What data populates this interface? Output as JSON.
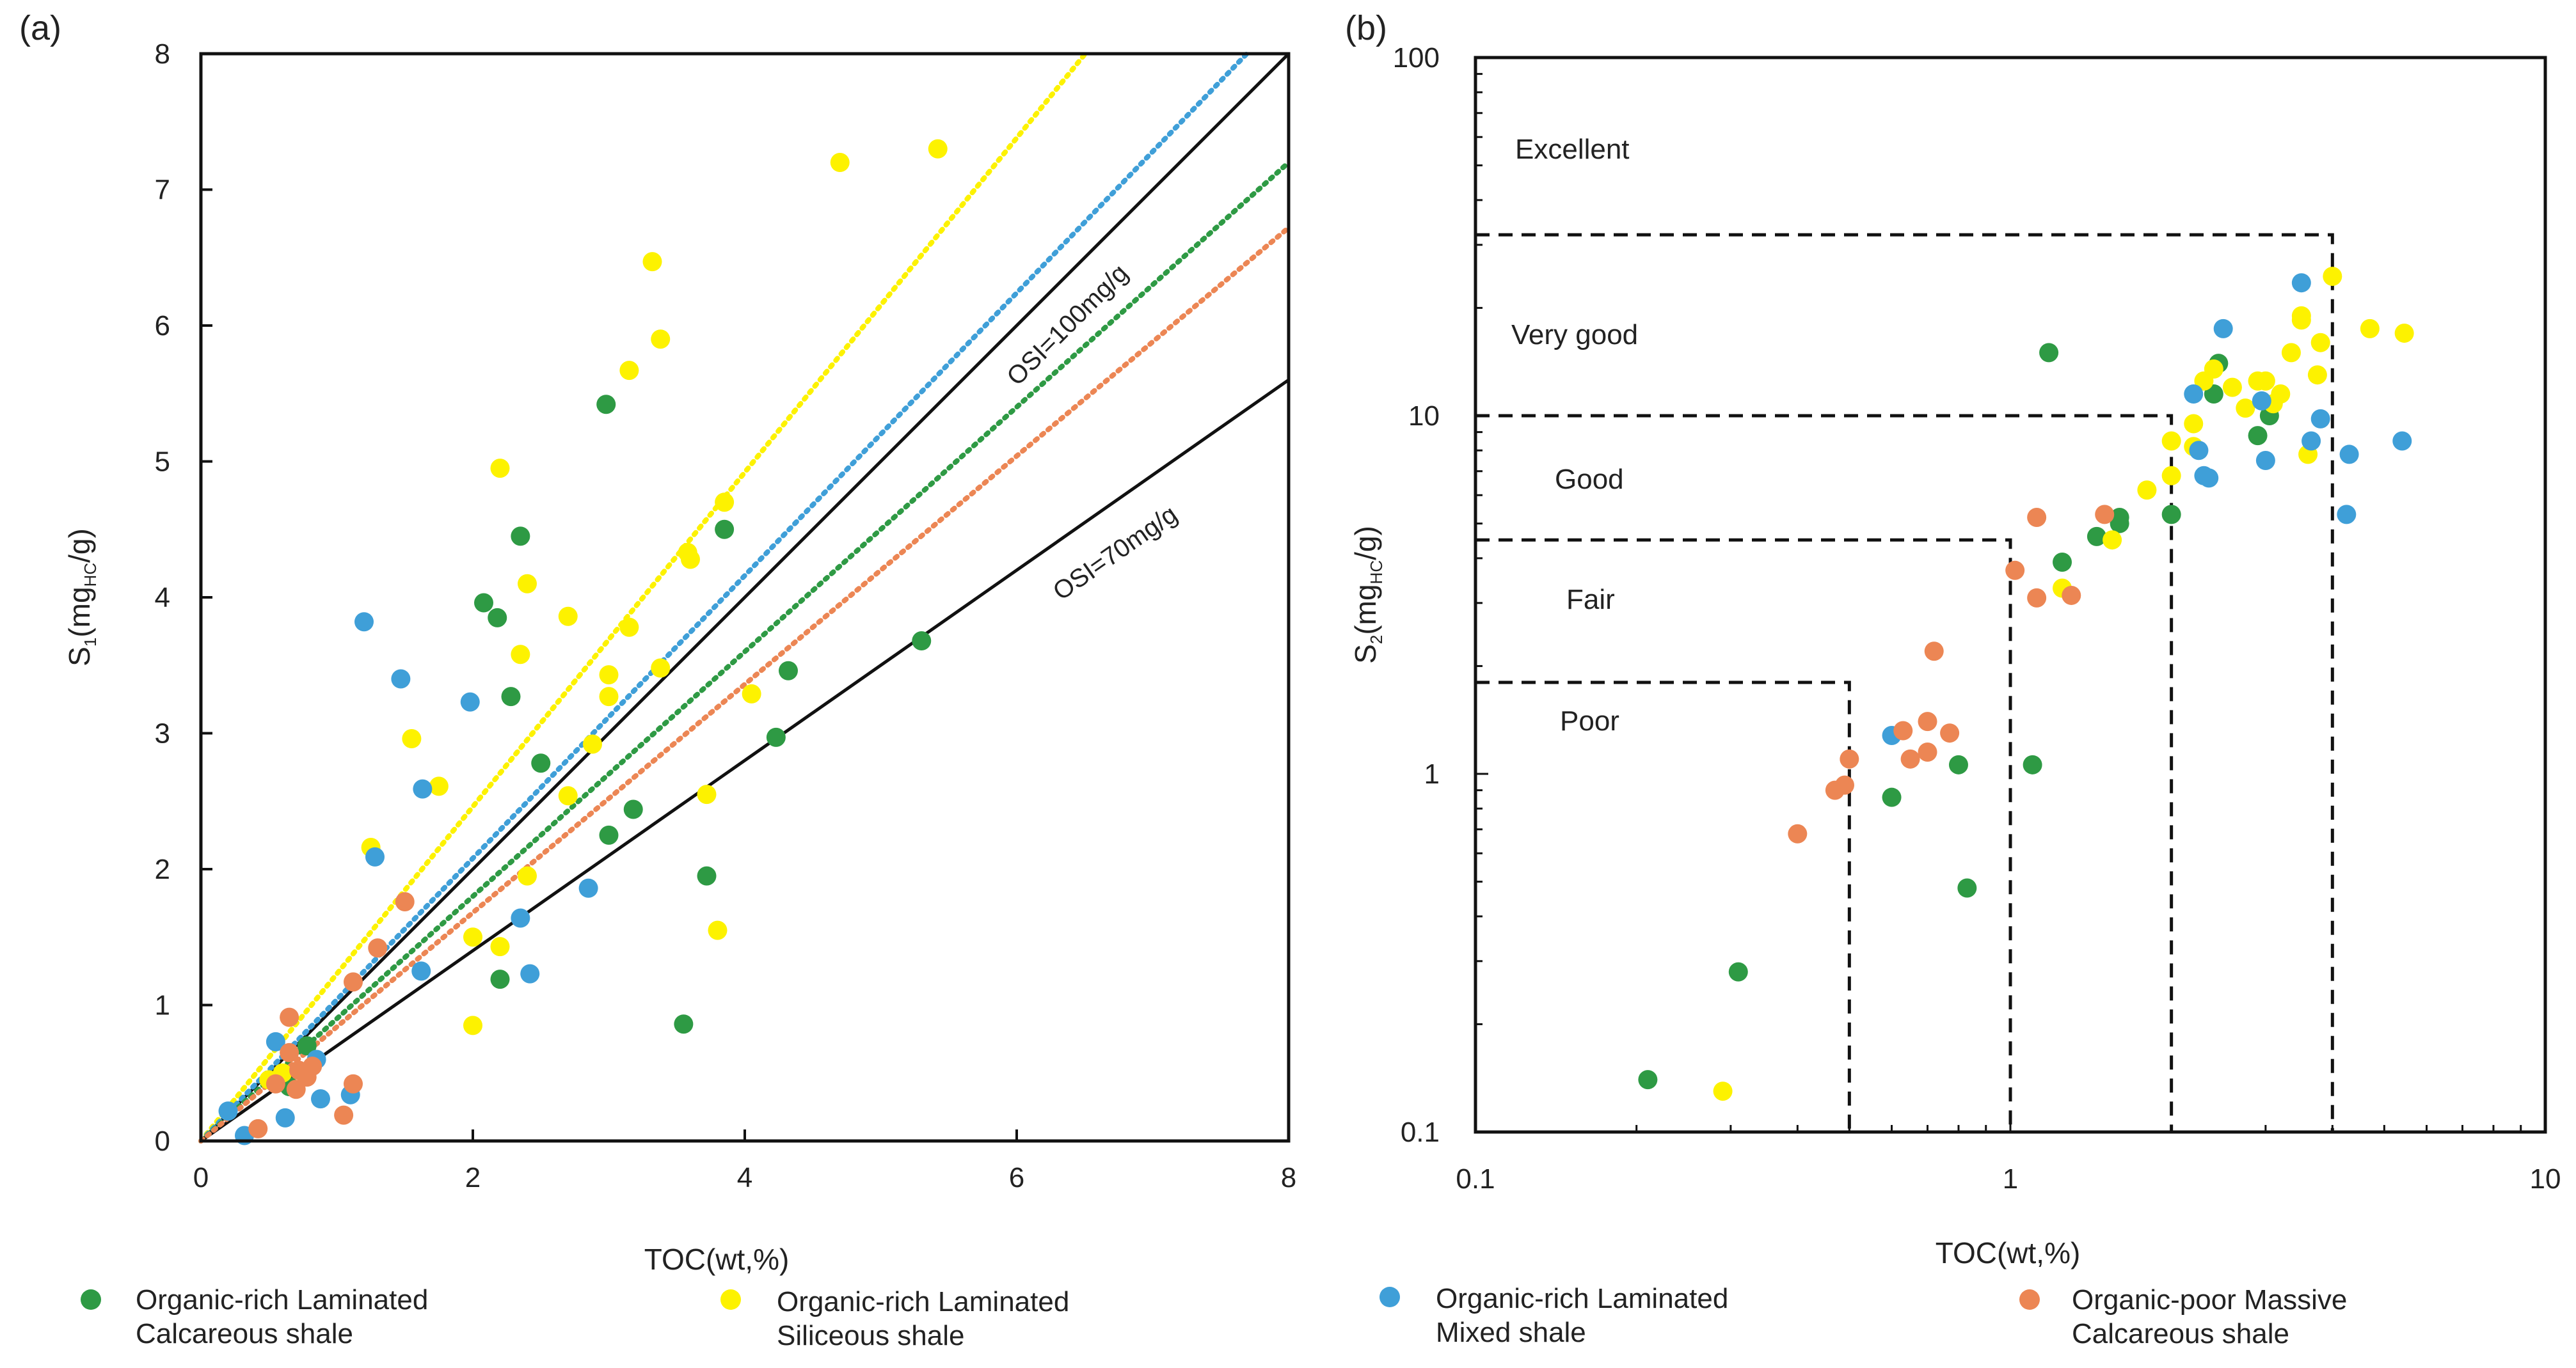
{
  "colors": {
    "calcareous": "#2e9a44",
    "siliceous": "#fdf200",
    "mixed": "#3f9fd8",
    "massive": "#ec8654",
    "frame": "#111111"
  },
  "legend": [
    {
      "key": "calcareous",
      "line1": "Organic-rich Laminated",
      "line2": "Calcareous shale"
    },
    {
      "key": "siliceous",
      "line1": "Organic-rich Laminated",
      "line2": "Siliceous shale"
    },
    {
      "key": "mixed",
      "line1": "Organic-rich Laminated",
      "line2": "Mixed shale"
    },
    {
      "key": "massive",
      "line1": "Organic-poor Massive",
      "line2": "Calcareous shale"
    }
  ],
  "chart_data": [
    {
      "id": "a",
      "type": "scatter",
      "panel_label": "(a)",
      "xlabel": "TOC(wt,%)",
      "ylabel": {
        "main": "S",
        "sub1": "1",
        "mid": "(mg",
        "sub2": "HC",
        "end": "/g)"
      },
      "xlim": [
        0,
        8
      ],
      "ylim": [
        0,
        8
      ],
      "xticks": [
        0,
        2,
        4,
        6,
        8
      ],
      "yticks": [
        0,
        1,
        2,
        3,
        4,
        5,
        6,
        7,
        8
      ],
      "reference_lines": [
        {
          "label": "OSI=100mg/g",
          "slope": 1.0,
          "color": "#111111",
          "style": "solid"
        },
        {
          "label": "OSI=70mg/g",
          "slope": 0.7,
          "color": "#111111",
          "style": "solid"
        }
      ],
      "trend_lines": [
        {
          "key": "siliceous",
          "slope": 1.23
        },
        {
          "key": "mixed",
          "slope": 1.04
        },
        {
          "key": "calcareous",
          "slope": 0.9
        },
        {
          "key": "massive",
          "slope": 0.84
        }
      ],
      "series": [
        {
          "key": "calcareous",
          "name": "Organic-rich Laminated Calcareous shale",
          "points": [
            [
              2.98,
              5.42
            ],
            [
              3.85,
              4.5
            ],
            [
              2.35,
              4.45
            ],
            [
              2.08,
              3.96
            ],
            [
              2.18,
              3.85
            ],
            [
              2.28,
              3.27
            ],
            [
              4.32,
              3.46
            ],
            [
              2.5,
              2.78
            ],
            [
              4.23,
              2.97
            ],
            [
              3.18,
              2.44
            ],
            [
              3.0,
              2.25
            ],
            [
              3.72,
              1.95
            ],
            [
              2.2,
              1.19
            ],
            [
              3.55,
              0.86
            ],
            [
              5.3,
              3.68
            ],
            [
              0.65,
              0.4
            ],
            [
              0.78,
              0.7
            ]
          ]
        },
        {
          "key": "siliceous",
          "name": "Organic-rich Laminated Siliceous shale",
          "points": [
            [
              4.7,
              7.2
            ],
            [
              5.42,
              7.3
            ],
            [
              3.32,
              6.47
            ],
            [
              3.15,
              5.67
            ],
            [
              3.38,
              5.9
            ],
            [
              2.2,
              4.95
            ],
            [
              3.85,
              4.7
            ],
            [
              3.58,
              4.33
            ],
            [
              3.6,
              4.28
            ],
            [
              2.4,
              4.1
            ],
            [
              2.7,
              3.86
            ],
            [
              3.15,
              3.78
            ],
            [
              2.35,
              3.58
            ],
            [
              3.0,
              3.43
            ],
            [
              3.38,
              3.48
            ],
            [
              3.0,
              3.27
            ],
            [
              4.05,
              3.29
            ],
            [
              1.55,
              2.96
            ],
            [
              2.88,
              2.92
            ],
            [
              1.75,
              2.61
            ],
            [
              2.7,
              2.54
            ],
            [
              3.72,
              2.55
            ],
            [
              1.25,
              2.16
            ],
            [
              2.4,
              1.95
            ],
            [
              2.0,
              1.5
            ],
            [
              2.2,
              1.43
            ],
            [
              3.8,
              1.55
            ],
            [
              2.0,
              0.85
            ],
            [
              0.6,
              0.5
            ],
            [
              0.5,
              0.45
            ]
          ]
        },
        {
          "key": "mixed",
          "name": "Organic-rich Laminated Mixed shale",
          "points": [
            [
              1.2,
              3.82
            ],
            [
              1.47,
              3.4
            ],
            [
              1.98,
              3.23
            ],
            [
              1.63,
              2.59
            ],
            [
              1.28,
              2.09
            ],
            [
              2.35,
              1.64
            ],
            [
              2.85,
              1.86
            ],
            [
              1.62,
              1.25
            ],
            [
              2.42,
              1.23
            ],
            [
              0.55,
              0.73
            ],
            [
              0.85,
              0.6
            ],
            [
              0.2,
              0.22
            ],
            [
              0.62,
              0.17
            ],
            [
              0.88,
              0.31
            ],
            [
              1.1,
              0.34
            ],
            [
              0.32,
              0.04
            ]
          ]
        },
        {
          "key": "massive",
          "name": "Organic-poor Massive Calcareous shale",
          "points": [
            [
              1.5,
              1.76
            ],
            [
              1.3,
              1.42
            ],
            [
              1.12,
              1.17
            ],
            [
              0.65,
              0.91
            ],
            [
              0.72,
              0.52
            ],
            [
              0.78,
              0.47
            ],
            [
              0.7,
              0.38
            ],
            [
              0.55,
              0.42
            ],
            [
              1.12,
              0.42
            ],
            [
              1.05,
              0.19
            ],
            [
              0.42,
              0.09
            ],
            [
              0.65,
              0.65
            ],
            [
              0.82,
              0.55
            ]
          ]
        }
      ]
    },
    {
      "id": "b",
      "type": "scatter",
      "scale": "log-log",
      "panel_label": "(b)",
      "xlabel": "TOC(wt,%)",
      "ylabel": {
        "main": "S",
        "sub1": "2",
        "mid": "(mg",
        "sub2": "HC",
        "end": "/g)"
      },
      "xlim": [
        0.1,
        10
      ],
      "ylim": [
        0.1,
        100
      ],
      "xticks": [
        0.1,
        1,
        10
      ],
      "yticks": [
        0.1,
        1,
        10,
        100
      ],
      "xtick_labels": [
        "0.1",
        "1",
        "10"
      ],
      "ytick_labels": [
        "0.1",
        "1",
        "10",
        "100"
      ],
      "grade_regions": [
        {
          "label": "Excellent",
          "toc_max": null,
          "s2_max": null
        },
        {
          "label": "Very good",
          "toc_max": 4,
          "s2_max": 32
        },
        {
          "label": "Good",
          "toc_max": 2,
          "s2_max": 10
        },
        {
          "label": "Fair",
          "toc_max": 1,
          "s2_max": 4.5
        },
        {
          "label": "Poor",
          "toc_max": 0.5,
          "s2_max": 1.8
        }
      ],
      "series": [
        {
          "key": "calcareous",
          "name": "Organic-rich Laminated Calcareous shale",
          "points": [
            [
              0.21,
              0.14
            ],
            [
              0.31,
              0.28
            ],
            [
              0.6,
              0.86
            ],
            [
              0.8,
              1.06
            ],
            [
              0.83,
              0.48
            ],
            [
              1.1,
              1.06
            ],
            [
              1.18,
              15.0
            ],
            [
              1.25,
              3.9
            ],
            [
              1.45,
              4.6
            ],
            [
              1.6,
              5.0
            ],
            [
              1.6,
              5.2
            ],
            [
              2.0,
              5.3
            ],
            [
              2.4,
              11.5
            ],
            [
              2.45,
              14.0
            ],
            [
              2.9,
              8.8
            ],
            [
              3.05,
              10.0
            ]
          ]
        },
        {
          "key": "siliceous",
          "name": "Organic-rich Laminated Siliceous shale",
          "points": [
            [
              0.29,
              0.13
            ],
            [
              1.25,
              3.3
            ],
            [
              1.55,
              4.5
            ],
            [
              1.8,
              6.2
            ],
            [
              2.0,
              6.8
            ],
            [
              2.0,
              8.5
            ],
            [
              2.2,
              9.5
            ],
            [
              2.2,
              8.2
            ],
            [
              2.3,
              12.5
            ],
            [
              2.4,
              13.5
            ],
            [
              2.6,
              12.0
            ],
            [
              2.75,
              10.5
            ],
            [
              2.9,
              12.5
            ],
            [
              3.0,
              12.5
            ],
            [
              3.1,
              10.8
            ],
            [
              3.2,
              11.5
            ],
            [
              3.35,
              15.0
            ],
            [
              3.5,
              18.5
            ],
            [
              3.5,
              19.0
            ],
            [
              3.6,
              7.8
            ],
            [
              3.75,
              13.0
            ],
            [
              3.8,
              16.0
            ],
            [
              4.0,
              24.5
            ],
            [
              4.7,
              17.5
            ],
            [
              5.45,
              17.0
            ]
          ]
        },
        {
          "key": "mixed",
          "name": "Organic-rich Laminated Mixed shale",
          "points": [
            [
              0.6,
              1.28
            ],
            [
              2.2,
              11.5
            ],
            [
              2.25,
              8.0
            ],
            [
              2.3,
              6.8
            ],
            [
              2.35,
              6.7
            ],
            [
              2.5,
              17.5
            ],
            [
              2.95,
              11.0
            ],
            [
              3.0,
              7.5
            ],
            [
              3.5,
              23.5
            ],
            [
              3.65,
              8.5
            ],
            [
              3.8,
              9.8
            ],
            [
              4.3,
              7.8
            ],
            [
              4.25,
              5.3
            ],
            [
              5.4,
              8.5
            ]
          ]
        },
        {
          "key": "massive",
          "name": "Organic-poor Massive Calcareous shale",
          "points": [
            [
              0.4,
              0.68
            ],
            [
              0.47,
              0.9
            ],
            [
              0.49,
              0.93
            ],
            [
              0.5,
              1.1
            ],
            [
              0.63,
              1.32
            ],
            [
              0.65,
              1.1
            ],
            [
              0.7,
              1.15
            ],
            [
              0.7,
              1.4
            ],
            [
              0.72,
              2.2
            ],
            [
              0.77,
              1.3
            ],
            [
              1.02,
              3.7
            ],
            [
              1.12,
              3.1
            ],
            [
              1.12,
              5.2
            ],
            [
              1.3,
              3.15
            ],
            [
              1.5,
              5.3
            ]
          ]
        }
      ]
    }
  ]
}
